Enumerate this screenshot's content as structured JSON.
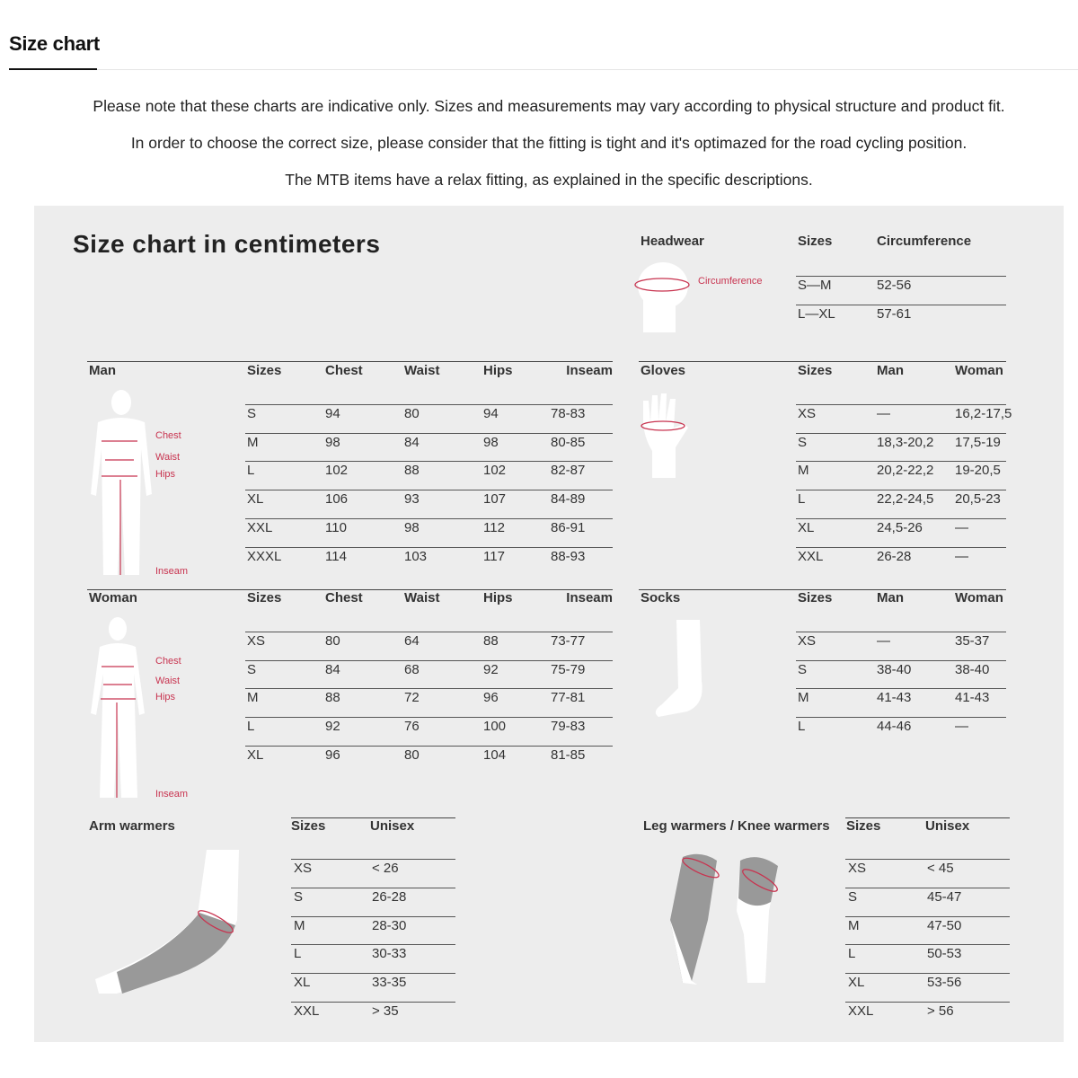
{
  "tab": {
    "label": "Size chart"
  },
  "notes": [
    "Please note that these charts are indicative only. Sizes and measurements may vary according to physical structure and product fit.",
    "In order to choose the correct size, please consider that the fitting is tight and it's optimazed for the road cycling position.",
    "The MTB items have a relax fitting, as explained in the specific descriptions."
  ],
  "panel_title": "Size chart in centimeters",
  "accent_color": "#c8334f",
  "figure_labels": {
    "chest": "Chest",
    "waist": "Waist",
    "hips": "Hips",
    "inseam": "Inseam",
    "circumference": "Circumference"
  },
  "tables": {
    "man": {
      "title": "Man",
      "headers": [
        "Sizes",
        "Chest",
        "Waist",
        "Hips",
        "Inseam"
      ],
      "rows": [
        [
          "S",
          "94",
          "80",
          "94",
          "78-83"
        ],
        [
          "M",
          "98",
          "84",
          "98",
          "80-85"
        ],
        [
          "L",
          "102",
          "88",
          "102",
          "82-87"
        ],
        [
          "XL",
          "106",
          "93",
          "107",
          "84-89"
        ],
        [
          "XXL",
          "110",
          "98",
          "112",
          "86-91"
        ],
        [
          "XXXL",
          "114",
          "103",
          "117",
          "88-93"
        ]
      ]
    },
    "woman": {
      "title": "Woman",
      "headers": [
        "Sizes",
        "Chest",
        "Waist",
        "Hips",
        "Inseam"
      ],
      "rows": [
        [
          "XS",
          "80",
          "64",
          "88",
          "73-77"
        ],
        [
          "S",
          "84",
          "68",
          "92",
          "75-79"
        ],
        [
          "M",
          "88",
          "72",
          "96",
          "77-81"
        ],
        [
          "L",
          "92",
          "76",
          "100",
          "79-83"
        ],
        [
          "XL",
          "96",
          "80",
          "104",
          "81-85"
        ]
      ]
    },
    "headwear": {
      "title": "Headwear",
      "headers": [
        "Sizes",
        "Circumference"
      ],
      "rows": [
        [
          "S—M",
          "52-56"
        ],
        [
          "L—XL",
          "57-61"
        ]
      ]
    },
    "gloves": {
      "title": "Gloves",
      "headers": [
        "Sizes",
        "Man",
        "Woman"
      ],
      "rows": [
        [
          "XS",
          "—",
          "16,2-17,5"
        ],
        [
          "S",
          "18,3-20,2",
          "17,5-19"
        ],
        [
          "M",
          "20,2-22,2",
          "19-20,5"
        ],
        [
          "L",
          "22,2-24,5",
          "20,5-23"
        ],
        [
          "XL",
          "24,5-26",
          "—"
        ],
        [
          "XXL",
          "26-28",
          "—"
        ]
      ]
    },
    "socks": {
      "title": "Socks",
      "headers": [
        "Sizes",
        "Man",
        "Woman"
      ],
      "rows": [
        [
          "XS",
          "—",
          "35-37"
        ],
        [
          "S",
          "38-40",
          "38-40"
        ],
        [
          "M",
          "41-43",
          "41-43"
        ],
        [
          "L",
          "44-46",
          "—"
        ]
      ]
    },
    "arm_warmers": {
      "title": "Arm warmers",
      "headers": [
        "Sizes",
        "Unisex"
      ],
      "rows": [
        [
          "XS",
          "< 26"
        ],
        [
          "S",
          "26-28"
        ],
        [
          "M",
          "28-30"
        ],
        [
          "L",
          "30-33"
        ],
        [
          "XL",
          "33-35"
        ],
        [
          "XXL",
          "> 35"
        ]
      ]
    },
    "leg_warmers": {
      "title": "Leg warmers / Knee warmers",
      "headers": [
        "Sizes",
        "Unisex"
      ],
      "rows": [
        [
          "XS",
          "< 45"
        ],
        [
          "S",
          "45-47"
        ],
        [
          "M",
          "47-50"
        ],
        [
          "L",
          "50-53"
        ],
        [
          "XL",
          "53-56"
        ],
        [
          "XXL",
          "> 56"
        ]
      ]
    }
  }
}
